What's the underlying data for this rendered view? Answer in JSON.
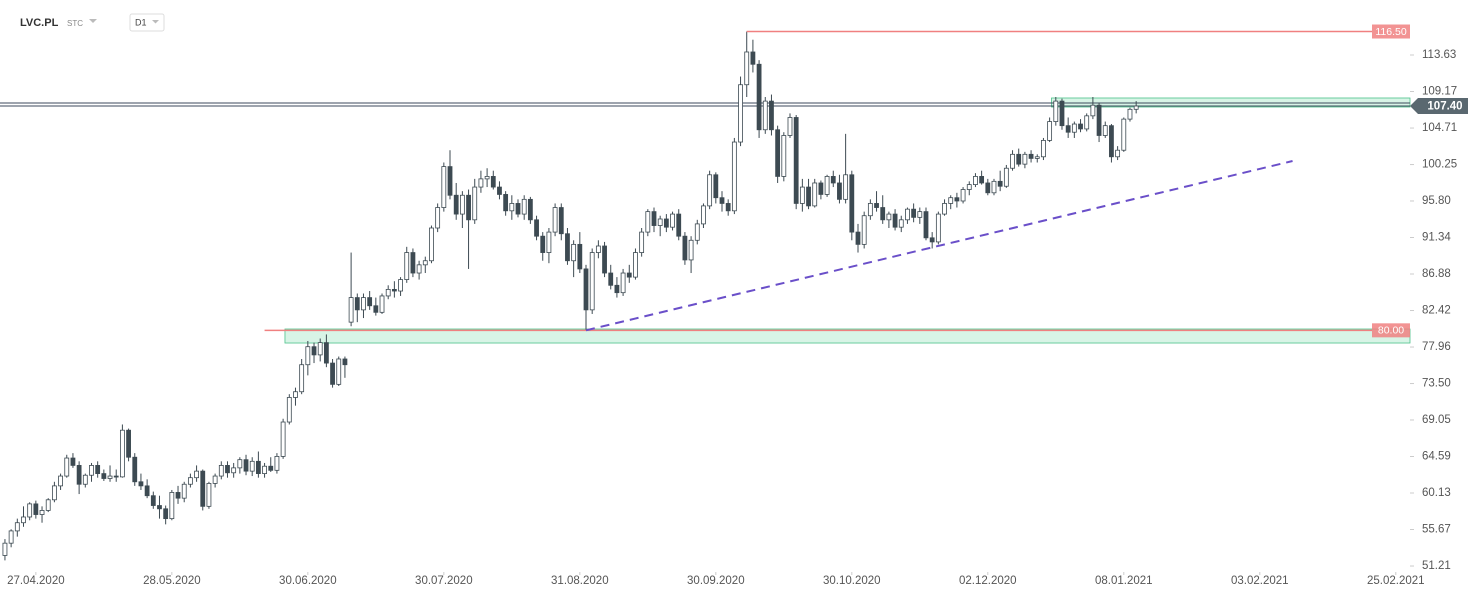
{
  "header": {
    "symbol": "LVC.PL",
    "market": "STC",
    "interval": "D1"
  },
  "chart_data": {
    "type": "candlestick",
    "xlim": [
      -0.8,
      227.3
    ],
    "ylim": [
      50.48,
      120.35
    ],
    "xticks": [
      {
        "value": 5,
        "label": "27.04.2020"
      },
      {
        "value": 27,
        "label": "28.05.2020"
      },
      {
        "value": 49,
        "label": "30.06.2020"
      },
      {
        "value": 71,
        "label": "30.07.2020"
      },
      {
        "value": 93,
        "label": "31.08.2020"
      },
      {
        "value": 115,
        "label": "30.09.2020"
      },
      {
        "value": 137,
        "label": "30.10.2020"
      },
      {
        "value": 159,
        "label": "02.12.2020"
      },
      {
        "value": 181,
        "label": "08.01.2021"
      },
      {
        "value": 203,
        "label": "03.02.2021"
      },
      {
        "value": 225,
        "label": "25.02.2021"
      }
    ],
    "yticks": [
      51.21,
      55.67,
      60.13,
      64.59,
      69.05,
      {
        "value": 73.5,
        "label": "73.50"
      },
      77.96,
      82.42,
      86.88,
      91.34,
      {
        "value": 95.8,
        "label": "95.80"
      },
      100.25,
      104.71,
      109.17,
      113.63
    ],
    "up_color": "#ffffff",
    "down_color": "#3d4a52",
    "edge_color": "#3d4a52",
    "open": [
      52.5,
      54,
      55.5,
      56.5,
      57.2,
      58.8,
      57.5,
      58,
      59.3,
      61,
      62.2,
      64.4,
      63.5,
      61.2,
      62.3,
      63.5,
      62.5,
      61.9,
      62.2,
      62.1,
      67.8,
      64.5,
      61.5,
      61,
      59.8,
      58.6,
      58.2,
      57,
      60.2,
      59.5,
      61.2,
      62,
      62.8,
      58.5,
      61.3,
      62.2,
      63.5,
      62.6,
      63.2,
      64.2,
      62.8,
      64,
      62.5,
      63.4,
      62.9,
      64.6,
      68.8,
      71.8,
      72.5,
      75.8,
      78,
      77,
      78.5,
      76,
      73.4,
      76.5,
      81,
      84,
      82.5,
      84,
      83,
      82.2,
      84.2,
      85,
      84.8,
      86.2,
      89.5,
      87,
      88,
      88.5,
      92.5,
      95,
      100,
      96.5,
      94.2,
      96.5,
      93.5,
      97.5,
      98.5,
      98.8,
      97.5,
      96.6,
      94.6,
      95.5,
      94.2,
      96,
      93.5,
      91.5,
      89.5,
      92,
      95,
      91.8,
      88.5,
      90.5,
      87.5,
      82.5,
      89.5,
      90.3,
      87,
      85.5,
      84.6,
      87,
      86.5,
      89.5,
      92,
      94.5,
      92.8,
      93.6,
      92.6,
      94.2,
      91.5,
      88.6,
      91,
      93,
      95.2,
      99,
      96.2,
      95.5,
      94.6,
      103,
      110,
      114,
      112.5,
      104.5,
      108,
      104.5,
      98.8,
      103.8,
      106,
      95.5,
      97.5,
      95.2,
      98,
      96.6,
      98.8,
      98,
      96,
      99,
      92,
      90.5,
      94,
      95.5,
      95,
      93.5,
      94.2,
      92.6,
      93.5,
      94.8,
      93.8,
      94.5,
      91.3,
      90.8,
      94.2,
      95.5,
      96.2,
      95.8,
      97.2,
      97.8,
      98.8,
      98,
      96.8,
      98.2,
      97.6,
      99.8,
      101.5,
      100.3,
      101.5,
      101,
      101.2,
      103.2,
      105.5,
      108,
      105,
      104.2,
      105.2,
      104.6,
      106.2,
      107.5,
      103.8,
      105,
      101.2,
      102,
      105.8,
      107
    ],
    "high": [
      54.5,
      55.7,
      57,
      58.5,
      59,
      59.2,
      58.5,
      59.5,
      61.5,
      62.5,
      64.8,
      65,
      64,
      62.5,
      63.8,
      64,
      63,
      63.5,
      63,
      68.5,
      68,
      65,
      62.5,
      61.8,
      60.3,
      59.8,
      58.6,
      60.5,
      61,
      61.5,
      62.5,
      63.5,
      63,
      61.5,
      62.5,
      64,
      64,
      63.8,
      64.5,
      64.8,
      64.5,
      65.2,
      63.8,
      64.5,
      65,
      69.2,
      72.2,
      73,
      76.5,
      78.7,
      78.5,
      79,
      79.5,
      76.5,
      76.8,
      76.8,
      89.5,
      84.5,
      84.5,
      84.8,
      84,
      84.5,
      85.5,
      86,
      86.5,
      90.2,
      90,
      88.5,
      89,
      92.8,
      95.5,
      100.5,
      102,
      98,
      97,
      97.2,
      98.5,
      99.5,
      99.8,
      99.5,
      98.2,
      97,
      96.5,
      96,
      96.5,
      96.3,
      94,
      92,
      92.5,
      95.5,
      95.5,
      92.5,
      91,
      92,
      88,
      90,
      91,
      90.8,
      88,
      86.5,
      87.5,
      88,
      90,
      92.5,
      94.8,
      95,
      94,
      94.2,
      94.5,
      94.8,
      92,
      91.5,
      93.5,
      95.5,
      99.5,
      99.3,
      97,
      96,
      103.5,
      111,
      116.5,
      115.5,
      113,
      108.5,
      108.8,
      105,
      104.2,
      106.5,
      106.3,
      98.5,
      98.5,
      98.5,
      98.3,
      99,
      99.5,
      99,
      104,
      99.5,
      93,
      94.5,
      96,
      97,
      96.5,
      94.5,
      94.8,
      94,
      95,
      95.5,
      95,
      95,
      92,
      94.5,
      96,
      96.5,
      96.8,
      97.5,
      98.2,
      99.2,
      99.5,
      98.5,
      98.5,
      99.5,
      100.2,
      102,
      102.2,
      101.8,
      102,
      101.5,
      103.5,
      106,
      108.5,
      108.3,
      106,
      105.5,
      105.8,
      106.5,
      108.5,
      107.8,
      105.5,
      105.2,
      102.5,
      106,
      107.2,
      108
    ],
    "low": [
      51.9,
      53.5,
      54.8,
      56,
      56.8,
      57,
      56.5,
      57.8,
      59,
      60.5,
      62,
      63.2,
      60,
      60.8,
      61.5,
      62,
      61.6,
      61.5,
      61.5,
      62,
      64,
      61,
      60.5,
      59.5,
      58.2,
      57,
      56.3,
      56.8,
      58.8,
      59,
      60.8,
      61.5,
      58,
      58.2,
      60.8,
      61.8,
      62,
      62,
      62.5,
      62.3,
      62.2,
      62,
      62,
      62.7,
      62.5,
      64.3,
      68.5,
      70.8,
      72.2,
      74.5,
      76,
      76.2,
      75.5,
      73,
      73.2,
      74.2,
      80.5,
      81,
      81.5,
      82.5,
      81.8,
      82,
      83.8,
      84,
      84.2,
      85.8,
      86.5,
      86.2,
      87,
      88.2,
      92,
      94.5,
      96,
      93.5,
      92.5,
      87.5,
      93,
      96.8,
      97.5,
      97.2,
      96,
      94,
      93.5,
      93.8,
      93.5,
      93,
      91,
      88.5,
      88.2,
      91.5,
      91,
      88,
      86.5,
      87,
      80,
      82,
      88.8,
      86.5,
      85,
      84,
      84.2,
      85.8,
      86.2,
      89,
      91.5,
      92,
      91.5,
      92,
      92.2,
      91,
      88,
      87,
      90.5,
      92.5,
      94.8,
      95.5,
      94.5,
      94,
      94.2,
      102.5,
      108.5,
      111.5,
      103.5,
      104,
      103.8,
      98,
      98.2,
      103.5,
      94.8,
      94.5,
      94.8,
      95,
      96,
      96.3,
      97.5,
      95.5,
      95.5,
      91,
      89.5,
      90,
      93.5,
      94.5,
      93,
      92.5,
      92.2,
      92,
      93,
      93.2,
      93,
      91,
      90,
      90.5,
      94,
      94.8,
      95,
      95.5,
      96.5,
      97.5,
      97.8,
      96.5,
      96.5,
      97,
      97.4,
      99.5,
      100,
      99.8,
      100.5,
      100.5,
      100.8,
      103,
      105,
      104.5,
      103.5,
      103.5,
      104.2,
      104.3,
      105.8,
      103,
      103.5,
      100.5,
      100.8,
      101.8,
      105.5,
      106.5
    ],
    "close": [
      54,
      55.5,
      56.5,
      57.2,
      58.8,
      57.5,
      58,
      59.3,
      61,
      62.2,
      64.4,
      63.5,
      61.2,
      62.3,
      63.5,
      62.5,
      61.9,
      62.2,
      62.1,
      67.8,
      64.5,
      61.5,
      61,
      59.8,
      58.6,
      58.2,
      57,
      60.2,
      59.5,
      61.2,
      62,
      62.8,
      58.5,
      61.3,
      62.2,
      63.5,
      62.6,
      63.2,
      64.2,
      62.8,
      64,
      62.5,
      63.4,
      62.9,
      64.6,
      68.8,
      71.8,
      72.5,
      75.8,
      78,
      77,
      78.5,
      76,
      73.4,
      76.5,
      75.8,
      84,
      82.5,
      84,
      83,
      82.2,
      84.2,
      85,
      84.8,
      86.2,
      89.5,
      87,
      88,
      88.5,
      92.5,
      95,
      100,
      96.5,
      94.2,
      96.5,
      93.5,
      97.5,
      98.5,
      98.8,
      97.5,
      96.6,
      94.6,
      95.5,
      94.2,
      96,
      93.5,
      91.5,
      89.5,
      92,
      95,
      91.8,
      88.5,
      90.5,
      87.5,
      82.5,
      89.5,
      90.3,
      87,
      85.5,
      84.6,
      87,
      86.5,
      89.5,
      92,
      94.5,
      92.8,
      93.6,
      92.6,
      94.2,
      91.5,
      88.6,
      91,
      93,
      95.2,
      99,
      96.2,
      95.5,
      94.6,
      103,
      110,
      114,
      112.5,
      104.5,
      108,
      104.5,
      98.8,
      103.8,
      106,
      95.5,
      97.5,
      95.2,
      98,
      96.6,
      98.8,
      98,
      96,
      99,
      92,
      90.5,
      94,
      95.5,
      95,
      93.5,
      94.2,
      92.6,
      93.5,
      94.8,
      93.8,
      94.5,
      91.3,
      90.8,
      94.2,
      95.5,
      96.2,
      95.8,
      97.2,
      97.8,
      98.8,
      98,
      96.8,
      98.2,
      97.6,
      99.8,
      101.5,
      100.3,
      101.5,
      101,
      101.2,
      103.2,
      105.5,
      108,
      105,
      104.2,
      105.2,
      104.6,
      106.2,
      107.5,
      103.8,
      105,
      101.2,
      102,
      105.8,
      107,
      107.4
    ],
    "levels": [
      {
        "value": 116.5,
        "label": "116.50",
        "start": 120,
        "color": "#f08080"
      },
      {
        "value": 80,
        "label": "80.00",
        "start": 42,
        "color": "#f08080"
      }
    ],
    "zones": [
      {
        "from": 78.45,
        "to": 80.16,
        "start": 45.3,
        "color": "#c8f0dc"
      },
      {
        "from": 107.28,
        "to": 108.38,
        "start": 169.3,
        "color": "#c8f0dc"
      }
    ],
    "last_price": {
      "value": 107.4,
      "label": "107.40",
      "color": "#5a6870"
    },
    "trendline": {
      "x": [
        94,
        208.3
      ],
      "y": [
        80,
        100.68
      ],
      "color": "#6a4fc9"
    }
  }
}
